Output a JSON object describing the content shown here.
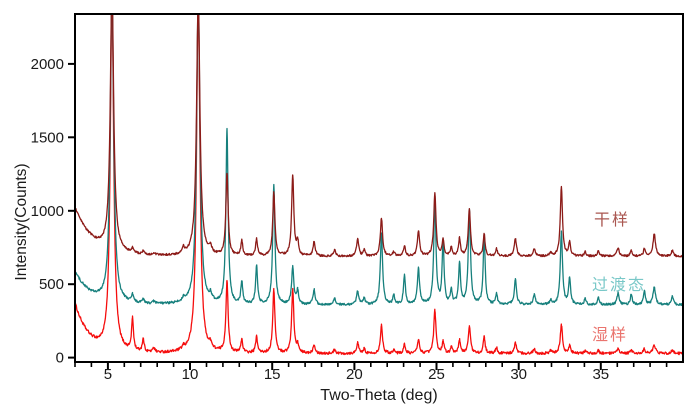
{
  "figure": {
    "background": "#ffffff",
    "frame_color": "#000000",
    "text_color": "#1a1a1a"
  },
  "axes": {
    "x": {
      "label": "Two-Theta (deg)",
      "min": 3,
      "max": 40,
      "major_ticks": [
        5,
        10,
        15,
        20,
        25,
        30,
        35
      ],
      "minor_step": 1
    },
    "y": {
      "label": "Intensity(Counts)",
      "min": -30,
      "max": 2340,
      "major_ticks": [
        0,
        500,
        1000,
        1500,
        2000
      ]
    }
  },
  "chart_data": {
    "type": "line",
    "title": "",
    "xlabel": "Two-Theta (deg)",
    "ylabel": "Intensity(Counts)",
    "xlim": [
      3,
      40
    ],
    "ylim": [
      -30,
      2340
    ],
    "grid": false,
    "legend_position": "right-inside",
    "description": "Powder XRD patterns of three samples, vertically offset; strong reflections at 5.25 and 10.5 degrees are clipped by the plot frame.",
    "series": [
      {
        "name": "湿样",
        "color": "#f50d0d",
        "label_color": "#ea746e",
        "baseline": 28,
        "low_angle_decay": {
          "amplitude": 340,
          "tau": 0.85
        },
        "noise": 9,
        "peak_column": 1
      },
      {
        "name": "过渡态",
        "color": "#17807d",
        "label_color": "#79c8c8",
        "baseline": 360,
        "low_angle_decay": {
          "amplitude": 225,
          "tau": 0.95
        },
        "noise": 8,
        "peak_column": 2
      },
      {
        "name": "干样",
        "color": "#8c1b18",
        "label_color": "#aa5751",
        "baseline": 690,
        "low_angle_decay": {
          "amplitude": 330,
          "tau": 1.1
        },
        "noise": 7,
        "peak_column": 3
      }
    ],
    "peaks_columns": [
      "two_theta_deg",
      "湿样_amp",
      "过渡态_amp",
      "干样_amp",
      "half_width_deg"
    ],
    "peaks": [
      [
        5.25,
        2450,
        2150,
        1800,
        0.12
      ],
      [
        6.5,
        215,
        50,
        30,
        0.07
      ],
      [
        7.15,
        85,
        25,
        20,
        0.07
      ],
      [
        7.8,
        30,
        15,
        15,
        0.07
      ],
      [
        9.6,
        20,
        25,
        40,
        0.09
      ],
      [
        10.5,
        2430,
        2120,
        1760,
        0.12
      ],
      [
        11.25,
        35,
        40,
        45,
        0.08
      ],
      [
        12.25,
        480,
        1180,
        560,
        0.08
      ],
      [
        13.15,
        90,
        150,
        100,
        0.07
      ],
      [
        14.05,
        110,
        260,
        115,
        0.07
      ],
      [
        15.1,
        430,
        810,
        430,
        0.08
      ],
      [
        16.25,
        430,
        250,
        550,
        0.08
      ],
      [
        16.55,
        50,
        90,
        90,
        0.07
      ],
      [
        17.55,
        60,
        100,
        95,
        0.08
      ],
      [
        18.8,
        25,
        40,
        40,
        0.08
      ],
      [
        20.2,
        70,
        90,
        115,
        0.08
      ],
      [
        20.6,
        30,
        45,
        40,
        0.07
      ],
      [
        21.65,
        190,
        490,
        260,
        0.08
      ],
      [
        22.4,
        25,
        60,
        30,
        0.07
      ],
      [
        23.05,
        60,
        200,
        70,
        0.07
      ],
      [
        23.9,
        90,
        240,
        170,
        0.08
      ],
      [
        24.9,
        290,
        700,
        430,
        0.08
      ],
      [
        25.4,
        80,
        420,
        110,
        0.07
      ],
      [
        25.9,
        40,
        90,
        60,
        0.07
      ],
      [
        26.4,
        90,
        280,
        120,
        0.07
      ],
      [
        27.0,
        185,
        645,
        320,
        0.08
      ],
      [
        27.9,
        110,
        480,
        150,
        0.07
      ],
      [
        28.65,
        40,
        70,
        50,
        0.07
      ],
      [
        29.8,
        70,
        170,
        120,
        0.08
      ],
      [
        30.95,
        30,
        70,
        50,
        0.08
      ],
      [
        31.95,
        20,
        30,
        25,
        0.07
      ],
      [
        32.6,
        195,
        490,
        470,
        0.08
      ],
      [
        33.1,
        50,
        180,
        90,
        0.07
      ],
      [
        34.05,
        20,
        40,
        30,
        0.07
      ],
      [
        34.85,
        20,
        45,
        35,
        0.07
      ],
      [
        36.05,
        30,
        80,
        60,
        0.08
      ],
      [
        36.85,
        25,
        70,
        40,
        0.07
      ],
      [
        37.65,
        30,
        90,
        50,
        0.07
      ],
      [
        38.25,
        60,
        120,
        150,
        0.09
      ],
      [
        39.35,
        25,
        60,
        40,
        0.07
      ]
    ]
  },
  "legend": {
    "dry_label": "干样",
    "transition_label": "过渡态",
    "wet_label": "湿样"
  }
}
